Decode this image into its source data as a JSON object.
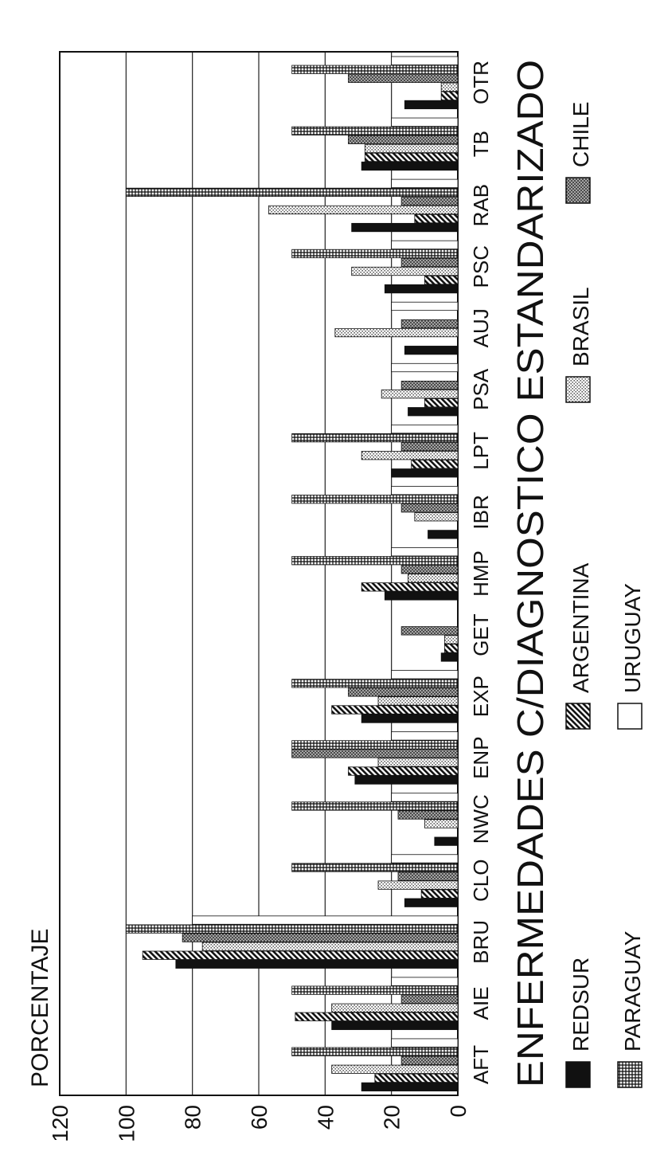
{
  "chart_data": {
    "type": "bar",
    "orientation": "vertical bars, page rotated 90 degrees counter-clockwise",
    "title": "ENFERMEDADES C/DIAGNOSTICO ESTANDARIZADO",
    "ylabel": "PORCENTAJE",
    "xlabel": "",
    "ylim": [
      0,
      120
    ],
    "yticks": [
      "0",
      "20",
      "40",
      "60",
      "80",
      "100",
      "120"
    ],
    "grid": true,
    "legend_position": "bottom",
    "categories": [
      "AFT",
      "AIE",
      "BRU",
      "CLO",
      "NWC",
      "ENP",
      "EXP",
      "GET",
      "HMP",
      "IBR",
      "LPT",
      "PSA",
      "AUJ",
      "PSC",
      "RAB",
      "TB",
      "OTR"
    ],
    "series": [
      {
        "name": "REDSUR",
        "pattern": "solid-black",
        "values": [
          29,
          38,
          85,
          16,
          7,
          31,
          29,
          5,
          22,
          9,
          20,
          15,
          16,
          22,
          32,
          29,
          16
        ]
      },
      {
        "name": "ARGENTINA",
        "pattern": "diagonal",
        "values": [
          25,
          49,
          95,
          11,
          0,
          33,
          38,
          4,
          29,
          0,
          14,
          10,
          0,
          10,
          13,
          28,
          5
        ]
      },
      {
        "name": "BRASIL",
        "pattern": "dotted",
        "values": [
          38,
          38,
          77,
          24,
          10,
          24,
          24,
          4,
          15,
          13,
          29,
          23,
          37,
          32,
          57,
          28,
          5
        ]
      },
      {
        "name": "CHILE",
        "pattern": "crosshatch",
        "values": [
          17,
          17,
          83,
          18,
          18,
          50,
          33,
          17,
          17,
          17,
          17,
          17,
          17,
          17,
          17,
          33,
          33
        ]
      },
      {
        "name": "PARAGUAY",
        "pattern": "grid",
        "values": [
          50,
          50,
          100,
          50,
          50,
          50,
          50,
          0,
          50,
          50,
          50,
          0,
          0,
          50,
          100,
          50,
          50
        ]
      },
      {
        "name": "URUGUAY",
        "pattern": "white",
        "values": [
          20,
          20,
          80,
          20,
          20,
          20,
          20,
          0,
          20,
          20,
          20,
          20,
          20,
          20,
          20,
          20,
          20
        ]
      }
    ]
  }
}
